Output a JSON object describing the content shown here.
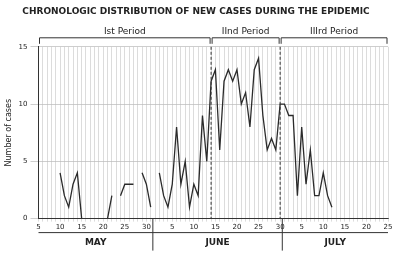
{
  "chart_data": {
    "type": "line",
    "title": "CHRONOLOGIC DISTRIBUTION OF NEW CASES DURING THE EPIDEMIC",
    "y_label": "Number of cases",
    "categories": [
      "5",
      null,
      null,
      null,
      null,
      "10",
      null,
      null,
      null,
      null,
      "15",
      null,
      null,
      null,
      null,
      "20",
      null,
      null,
      null,
      null,
      "25",
      null,
      null,
      null,
      null,
      "30",
      null,
      null,
      null,
      null,
      null,
      "5",
      null,
      null,
      null,
      null,
      "10",
      null,
      null,
      null,
      null,
      "15",
      null,
      null,
      null,
      null,
      "20",
      null,
      null,
      null,
      null,
      "25",
      null,
      null,
      null,
      null,
      "30",
      null,
      null,
      null,
      null,
      "5",
      null,
      null,
      null,
      null,
      "10",
      null,
      null,
      null,
      null,
      "15",
      null,
      null,
      null,
      null,
      "20",
      null,
      null,
      null,
      null,
      "25"
    ],
    "values": [
      null,
      null,
      null,
      null,
      null,
      4,
      2,
      1,
      3,
      4,
      0,
      null,
      null,
      null,
      null,
      null,
      0,
      2,
      null,
      2,
      3,
      3,
      3,
      null,
      4,
      3,
      1,
      null,
      4,
      2,
      1,
      3,
      8,
      3,
      5,
      1,
      3,
      2,
      9,
      5,
      12,
      13,
      6,
      12,
      13,
      12,
      13,
      10,
      11,
      8,
      13,
      14,
      9,
      6,
      7,
      6,
      10,
      10,
      9,
      9,
      2,
      8,
      3,
      6,
      2,
      2,
      4,
      2,
      1,
      null,
      null,
      null,
      null,
      null,
      null,
      null,
      null,
      null,
      null,
      null,
      null,
      null
    ],
    "months": [
      {
        "label": "MAY",
        "first_day": 5,
        "last_day": 31
      },
      {
        "label": "JUNE",
        "first_day": 1,
        "last_day": 30
      },
      {
        "label": "JULY",
        "first_day": 1,
        "last_day": 25
      }
    ],
    "periods": [
      {
        "label": "Ist Period",
        "start": {
          "month": "MAY",
          "day": 5
        },
        "end": {
          "month": "JUNE",
          "day": 14
        }
      },
      {
        "label": "IInd Period",
        "start": {
          "month": "JUNE",
          "day": 14
        },
        "end": {
          "month": "JUNE",
          "day": 30
        }
      },
      {
        "label": "IIIrd Period",
        "start": {
          "month": "JUNE",
          "day": 30
        },
        "end": {
          "month": "JULY",
          "day": 25
        }
      }
    ],
    "color": "#2b2b2b",
    "ylim": [
      0,
      15
    ],
    "yticks": [
      0,
      5,
      10,
      15
    ],
    "grid": true
  }
}
